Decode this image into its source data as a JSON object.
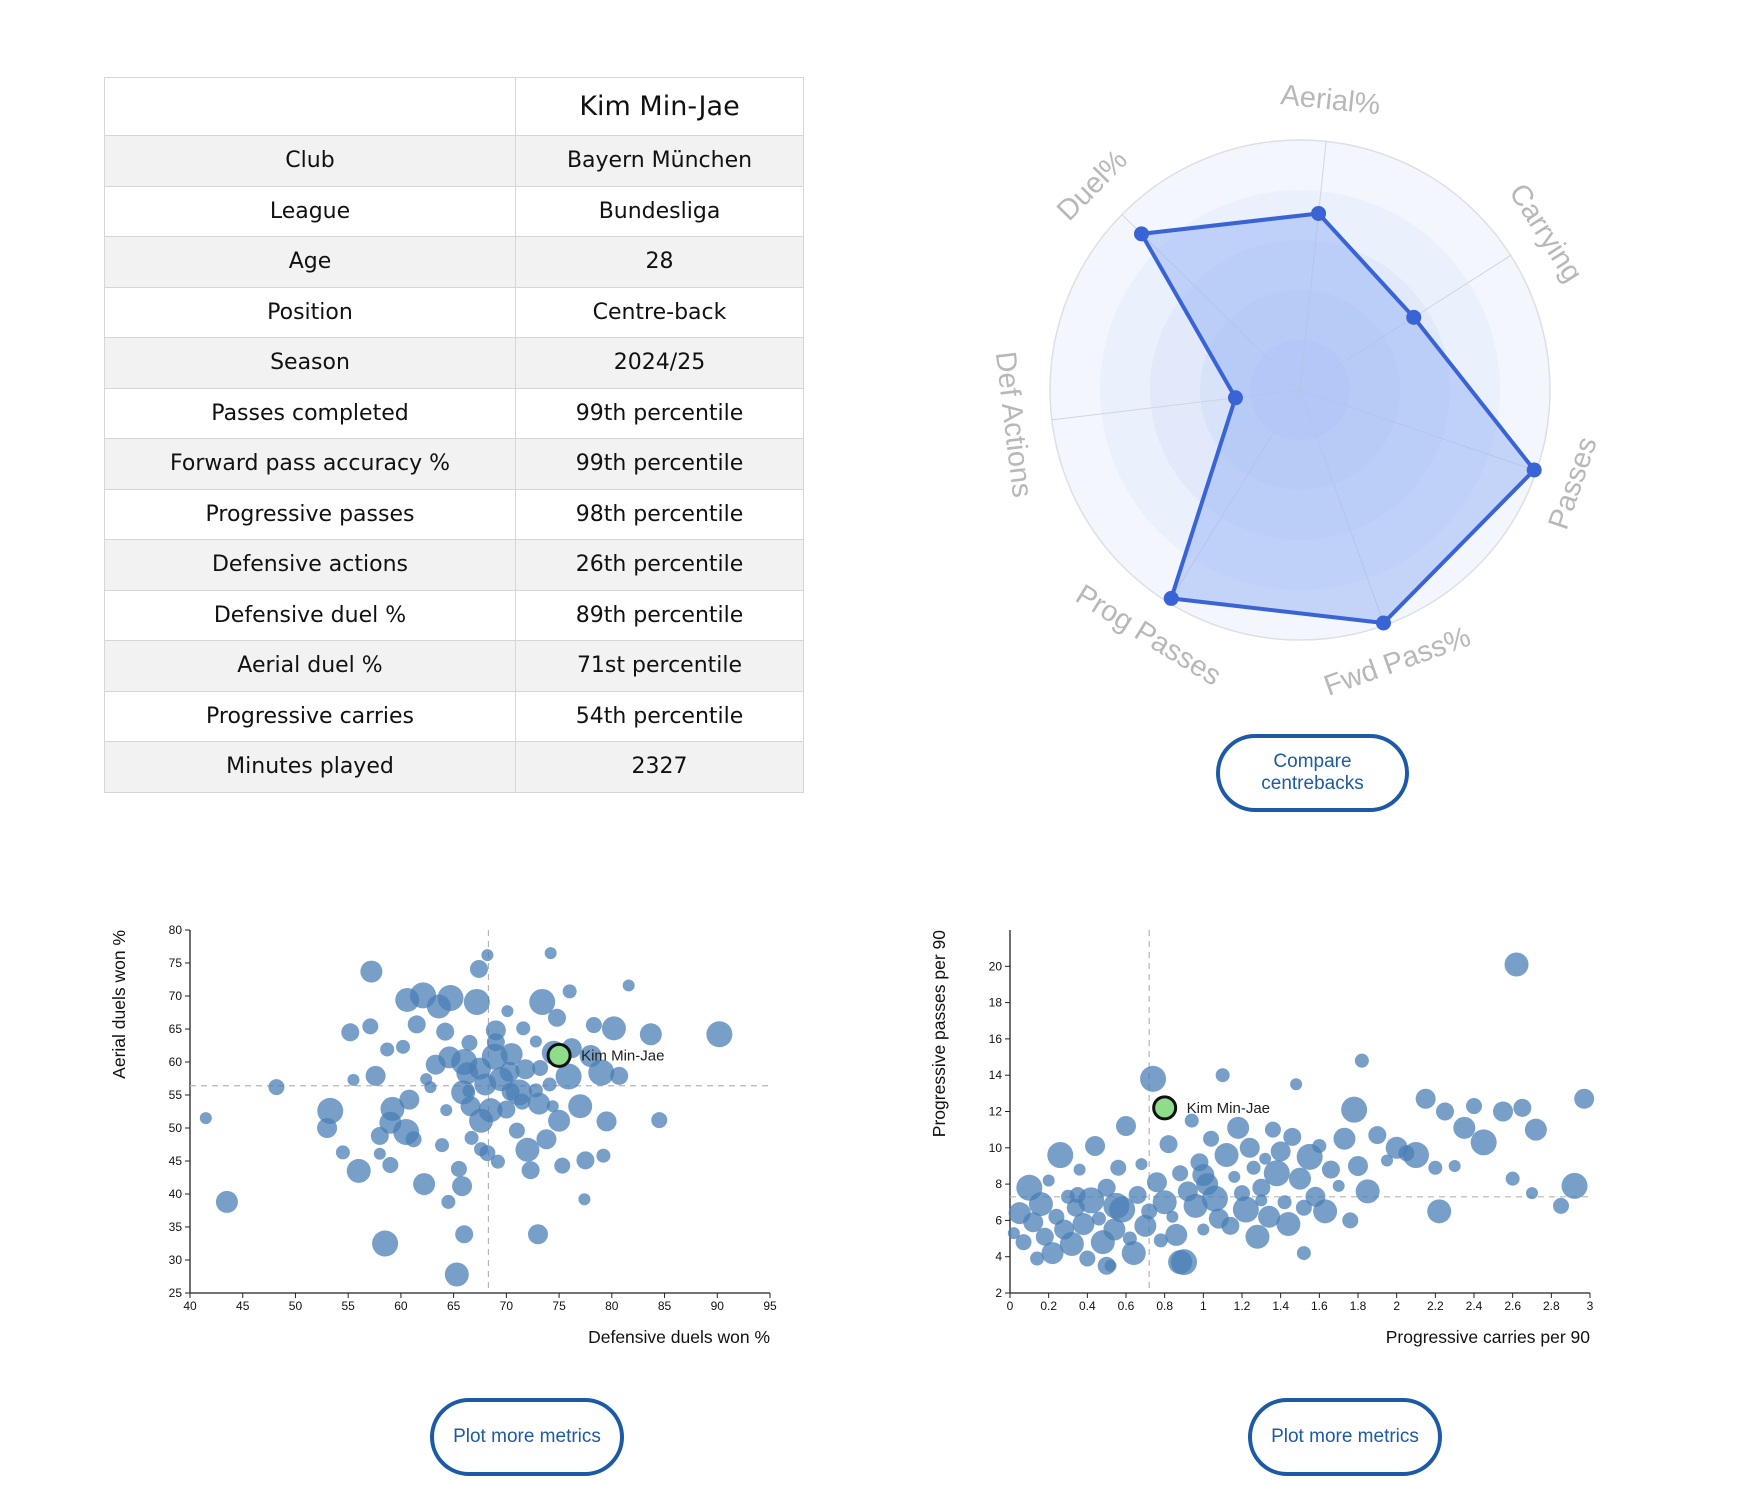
{
  "profile": {
    "player_name": "Kim Min-Jae",
    "rows": [
      {
        "key": "Club",
        "value": "Bayern München",
        "tone": "link"
      },
      {
        "key": "League",
        "value": "Bundesliga",
        "tone": "plain"
      },
      {
        "key": "Age",
        "value": "28",
        "tone": "plain"
      },
      {
        "key": "Position",
        "value": "Centre-back",
        "tone": "link"
      },
      {
        "key": "Season",
        "value": "2024/25",
        "tone": "plain"
      },
      {
        "key": "Passes completed",
        "value": "99th percentile",
        "tone": "good"
      },
      {
        "key": "Forward pass accuracy %",
        "value": "99th percentile",
        "tone": "good"
      },
      {
        "key": "Progressive passes",
        "value": "98th percentile",
        "tone": "good"
      },
      {
        "key": "Defensive actions",
        "value": "26th percentile",
        "tone": "mid"
      },
      {
        "key": "Defensive duel %",
        "value": "89th percentile",
        "tone": "good"
      },
      {
        "key": "Aerial duel %",
        "value": "71st percentile",
        "tone": "mid"
      },
      {
        "key": "Progressive carries",
        "value": "54th percentile",
        "tone": "mid"
      },
      {
        "key": "Minutes played",
        "value": "2327",
        "tone": "plain"
      }
    ]
  },
  "colors": {
    "radar_line": "#3a63d6",
    "radar_fill": "#9db8f5",
    "scatter_point": "#4a7fb5",
    "highlight_point": "#8fdc8a",
    "button_border": "#1c5aa6"
  },
  "buttons": {
    "compare_label": "Compare centrebacks",
    "plot_more_left": "Plot more metrics",
    "plot_more_right": "Plot more metrics"
  },
  "chart_data": [
    {
      "type": "radar",
      "axes": [
        "Aerial%",
        "Carrying",
        "Passes",
        "Fwd Pass%",
        "Prog Passes",
        "Def Actions",
        "Duel%"
      ],
      "values": [
        71,
        54,
        99,
        99,
        98,
        26,
        89
      ],
      "range": [
        0,
        100
      ],
      "grid": true
    },
    {
      "type": "scatter",
      "xlabel": "Defensive duels won %",
      "ylabel": "Aerial duels won %",
      "xlim": [
        40,
        95
      ],
      "ylim": [
        25,
        80
      ],
      "xticks": [
        40,
        45,
        50,
        55,
        60,
        65,
        70,
        75,
        80,
        85,
        90,
        95
      ],
      "yticks": [
        25,
        30,
        35,
        40,
        45,
        50,
        55,
        60,
        65,
        70,
        75,
        80
      ],
      "reference_lines": {
        "x": 68.3,
        "y": 56.4
      },
      "highlight": {
        "name": "Kim Min-Jae",
        "x": 75,
        "y": 61
      },
      "points_note": "",
      "points": [
        [
          41.5,
          51.5
        ],
        [
          43.5,
          38.8
        ],
        [
          48.2,
          56.2
        ],
        [
          53.3,
          52.6
        ],
        [
          53,
          50
        ],
        [
          54.5,
          46.3
        ],
        [
          56,
          43.5
        ],
        [
          55.2,
          64.5
        ],
        [
          55.5,
          57.3
        ],
        [
          57.2,
          73.7
        ],
        [
          57.1,
          65.4
        ],
        [
          58.5,
          32.5
        ],
        [
          57.6,
          57.9
        ],
        [
          58.7,
          61.9
        ],
        [
          59.2,
          52.9
        ],
        [
          58,
          48.8
        ],
        [
          58,
          46.1
        ],
        [
          59,
          50.8
        ],
        [
          59,
          44.4
        ],
        [
          60.5,
          49.4
        ],
        [
          60.8,
          54.3
        ],
        [
          60.2,
          62.3
        ],
        [
          60.6,
          69.4
        ],
        [
          61.5,
          65.7
        ],
        [
          62.4,
          57.4
        ],
        [
          62.2,
          41.5
        ],
        [
          61.2,
          48.3
        ],
        [
          62.1,
          70.1
        ],
        [
          63.3,
          59.6
        ],
        [
          63.9,
          47.4
        ],
        [
          63.6,
          68.4
        ],
        [
          64.2,
          64.6
        ],
        [
          64.3,
          52.7
        ],
        [
          64.6,
          60.7
        ],
        [
          65.5,
          43.8
        ],
        [
          64.7,
          69.7
        ],
        [
          65.8,
          41.2
        ],
        [
          64.5,
          38.8
        ],
        [
          65.3,
          27.8
        ],
        [
          66,
          33.9
        ],
        [
          66.4,
          55.6
        ],
        [
          66.3,
          58.3
        ],
        [
          66.5,
          62.9
        ],
        [
          67.2,
          69.1
        ],
        [
          66.6,
          53.3
        ],
        [
          66.7,
          48.5
        ],
        [
          67.6,
          51.1
        ],
        [
          67.4,
          74.1
        ],
        [
          68.2,
          76.2
        ],
        [
          68,
          56.6
        ],
        [
          68.2,
          46.2
        ],
        [
          68.9,
          60.8
        ],
        [
          69,
          64.8
        ],
        [
          69.2,
          44.9
        ],
        [
          69.5,
          57.4
        ],
        [
          70,
          52.8
        ],
        [
          70.1,
          67.7
        ],
        [
          70.5,
          61.2
        ],
        [
          71,
          49.6
        ],
        [
          71.2,
          55.4
        ],
        [
          71.8,
          58.9
        ],
        [
          71.6,
          65.1
        ],
        [
          72,
          46.7
        ],
        [
          72.3,
          43.6
        ],
        [
          72.8,
          63.1
        ],
        [
          73.1,
          53.7
        ],
        [
          73.2,
          59.1
        ],
        [
          73.4,
          69.1
        ],
        [
          73.8,
          48.3
        ],
        [
          74.1,
          56.6
        ],
        [
          74.5,
          61.4
        ],
        [
          74.8,
          66.7
        ],
        [
          74.2,
          76.5
        ],
        [
          75,
          51.1
        ],
        [
          75.3,
          44.3
        ],
        [
          75.9,
          57.8
        ],
        [
          76.2,
          62.1
        ],
        [
          76,
          70.7
        ],
        [
          77,
          53.3
        ],
        [
          77.5,
          45.1
        ],
        [
          77.4,
          39.2
        ],
        [
          78,
          60.9
        ],
        [
          78.3,
          65.6
        ],
        [
          79,
          58.4
        ],
        [
          79.5,
          51
        ],
        [
          79.2,
          45.8
        ],
        [
          80.2,
          65.1
        ],
        [
          80.7,
          57.9
        ],
        [
          81.6,
          71.6
        ],
        [
          83.7,
          64.2
        ],
        [
          84.5,
          51.2
        ],
        [
          90.2,
          64.2
        ],
        [
          73,
          33.9
        ],
        [
          67.6,
          46.8
        ],
        [
          65.9,
          55.4
        ],
        [
          70.4,
          55.5
        ],
        [
          62.8,
          56.2
        ],
        [
          67.5,
          59
        ],
        [
          71.5,
          54
        ],
        [
          66,
          60
        ],
        [
          70.3,
          58.5
        ],
        [
          72.8,
          55.7
        ],
        [
          68.5,
          52.7
        ],
        [
          69,
          63
        ],
        [
          74.4,
          53.3
        ]
      ]
    },
    {
      "type": "scatter",
      "xlabel": "Progressive carries per 90",
      "ylabel": "Progressive passes per 90",
      "xlim": [
        0,
        3
      ],
      "ylim": [
        2,
        22
      ],
      "xticks": [
        0,
        0.2,
        0.4,
        0.6,
        0.8,
        1.0,
        1.2,
        1.4,
        1.6,
        1.8,
        2.0,
        2.2,
        2.4,
        2.6,
        2.8,
        3.0
      ],
      "yticks": [
        2,
        4,
        6,
        8,
        10,
        12,
        14,
        16,
        18,
        20
      ],
      "reference_lines": {
        "x": 0.72,
        "y": 7.3
      },
      "highlight": {
        "name": "Kim Min-Jae",
        "x": 0.8,
        "y": 12.2
      },
      "points": [
        [
          0.02,
          5.3
        ],
        [
          0.05,
          6.4
        ],
        [
          0.07,
          4.8
        ],
        [
          0.1,
          7.8
        ],
        [
          0.12,
          5.9
        ],
        [
          0.14,
          3.9
        ],
        [
          0.16,
          6.9
        ],
        [
          0.18,
          5.1
        ],
        [
          0.2,
          8.2
        ],
        [
          0.22,
          4.2
        ],
        [
          0.24,
          6.2
        ],
        [
          0.26,
          9.6
        ],
        [
          0.28,
          5.5
        ],
        [
          0.3,
          7.3
        ],
        [
          0.32,
          4.7
        ],
        [
          0.34,
          6.7
        ],
        [
          0.36,
          8.8
        ],
        [
          0.38,
          5.8
        ],
        [
          0.4,
          3.9
        ],
        [
          0.42,
          7.1
        ],
        [
          0.44,
          10.1
        ],
        [
          0.46,
          6.1
        ],
        [
          0.48,
          4.8
        ],
        [
          0.5,
          7.8
        ],
        [
          0.52,
          3.5
        ],
        [
          0.54,
          5.5
        ],
        [
          0.56,
          8.9
        ],
        [
          0.58,
          6.6
        ],
        [
          0.6,
          11.2
        ],
        [
          0.62,
          5
        ],
        [
          0.64,
          4.2
        ],
        [
          0.66,
          7.4
        ],
        [
          0.68,
          9.1
        ],
        [
          0.7,
          5.7
        ],
        [
          0.72,
          6.5
        ],
        [
          0.74,
          13.8
        ],
        [
          0.76,
          8.1
        ],
        [
          0.78,
          4.9
        ],
        [
          0.8,
          7
        ],
        [
          0.82,
          10.2
        ],
        [
          0.84,
          6.2
        ],
        [
          0.86,
          5.2
        ],
        [
          0.88,
          8.6
        ],
        [
          0.9,
          3.7
        ],
        [
          0.92,
          7.6
        ],
        [
          0.94,
          11.5
        ],
        [
          0.96,
          6.8
        ],
        [
          0.98,
          9.2
        ],
        [
          1,
          5.5
        ],
        [
          1.02,
          8
        ],
        [
          1.04,
          10.5
        ],
        [
          1.06,
          7.2
        ],
        [
          1.08,
          6.1
        ],
        [
          1.1,
          14
        ],
        [
          1.12,
          9.6
        ],
        [
          1.14,
          5.7
        ],
        [
          1.16,
          8.4
        ],
        [
          1.18,
          11.1
        ],
        [
          1.2,
          7.5
        ],
        [
          1.22,
          6.6
        ],
        [
          1.24,
          10
        ],
        [
          1.26,
          8.9
        ],
        [
          1.28,
          5.1
        ],
        [
          1.3,
          7.8
        ],
        [
          1.32,
          9.4
        ],
        [
          1.34,
          6.2
        ],
        [
          1.36,
          11
        ],
        [
          1.38,
          8.6
        ],
        [
          1.4,
          9.8
        ],
        [
          1.42,
          7
        ],
        [
          1.44,
          5.8
        ],
        [
          1.46,
          10.6
        ],
        [
          1.48,
          13.5
        ],
        [
          1.5,
          8.3
        ],
        [
          1.52,
          6.7
        ],
        [
          1.55,
          9.5
        ],
        [
          1.58,
          7.3
        ],
        [
          1.6,
          10.1
        ],
        [
          1.63,
          6.5
        ],
        [
          1.66,
          8.8
        ],
        [
          1.7,
          7.9
        ],
        [
          1.73,
          10.5
        ],
        [
          1.76,
          6
        ],
        [
          1.78,
          12.1
        ],
        [
          1.8,
          9
        ],
        [
          1.82,
          14.8
        ],
        [
          1.85,
          7.6
        ],
        [
          1.9,
          10.7
        ],
        [
          1.95,
          9.3
        ],
        [
          2,
          10
        ],
        [
          2.05,
          9.7
        ],
        [
          2.1,
          9.6
        ],
        [
          2.15,
          12.7
        ],
        [
          2.2,
          8.9
        ],
        [
          2.22,
          6.5
        ],
        [
          2.25,
          12
        ],
        [
          2.3,
          9
        ],
        [
          2.35,
          11.1
        ],
        [
          2.4,
          12.3
        ],
        [
          2.45,
          10.3
        ],
        [
          2.55,
          12
        ],
        [
          2.6,
          8.3
        ],
        [
          2.62,
          20.1
        ],
        [
          2.65,
          12.2
        ],
        [
          2.7,
          7.5
        ],
        [
          2.72,
          11
        ],
        [
          2.85,
          6.8
        ],
        [
          2.92,
          7.9
        ],
        [
          2.97,
          12.7
        ],
        [
          1.52,
          4.2
        ],
        [
          0.88,
          3.7
        ],
        [
          0.5,
          3.5
        ],
        [
          1.3,
          7.1
        ],
        [
          1.0,
          8.5
        ],
        [
          0.35,
          7.4
        ],
        [
          0.55,
          6.8
        ]
      ]
    }
  ]
}
